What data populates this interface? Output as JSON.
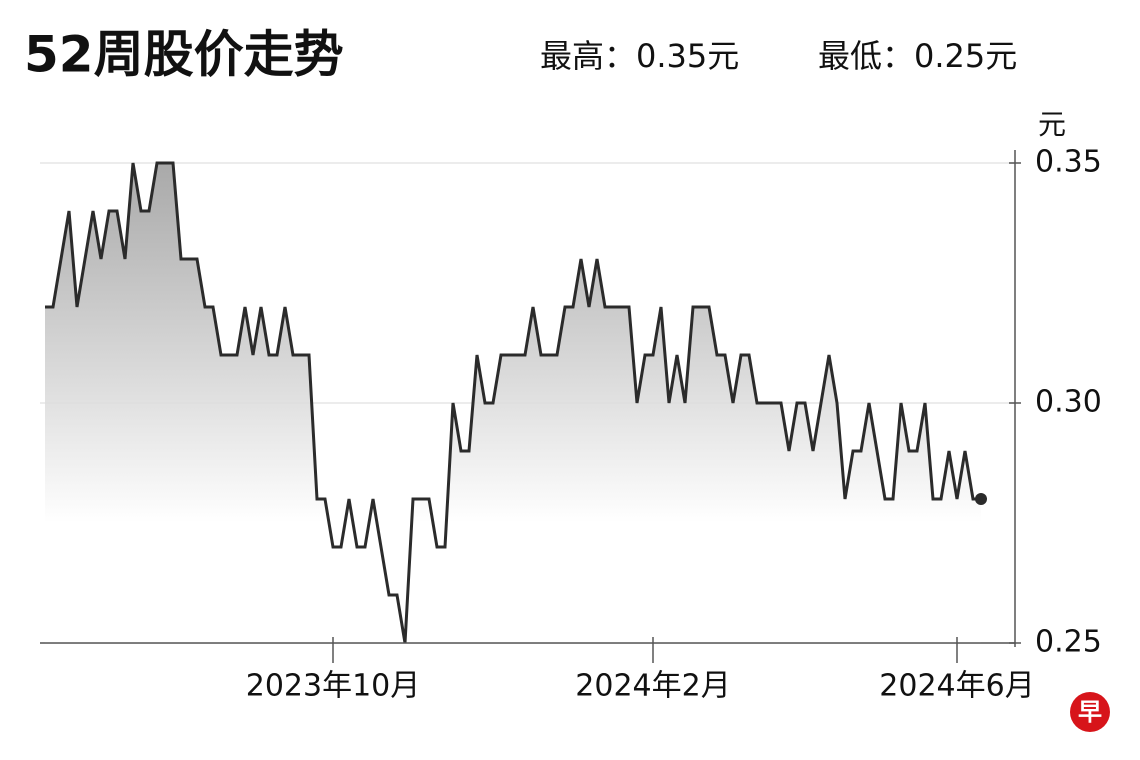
{
  "chart_data": {
    "type": "line",
    "title": "52周股价走势",
    "high_label": "最高：0.35元",
    "low_label": "最低：0.25元",
    "y_unit": "元",
    "logo": "早",
    "categories": [
      null,
      null,
      null,
      null,
      null,
      null,
      null,
      null,
      null,
      null,
      null,
      null,
      null,
      null,
      null,
      null,
      null,
      null,
      null,
      null,
      null,
      null,
      null,
      null,
      null,
      null,
      null,
      null,
      null,
      null,
      null,
      null,
      null,
      null,
      null,
      null,
      "2023年10月",
      null,
      null,
      null,
      null,
      null,
      null,
      null,
      null,
      null,
      null,
      null,
      null,
      null,
      null,
      null,
      null,
      null,
      null,
      null,
      null,
      null,
      null,
      null,
      null,
      null,
      null,
      null,
      null,
      null,
      null,
      null,
      null,
      null,
      null,
      null,
      null,
      null,
      null,
      null,
      "2024年2月",
      null,
      null,
      null,
      null,
      null,
      null,
      null,
      null,
      null,
      null,
      null,
      null,
      null,
      null,
      null,
      null,
      null,
      null,
      null,
      null,
      null,
      null,
      null,
      null,
      null,
      null,
      null,
      null,
      null,
      null,
      null,
      null,
      null,
      null,
      null,
      null,
      null,
      "2024年6月",
      null,
      null,
      null
    ],
    "series": [
      {
        "color": "#2b2b2b",
        "values": [
          0.32,
          0.32,
          0.33,
          0.34,
          0.32,
          0.33,
          0.34,
          0.33,
          0.34,
          0.34,
          0.33,
          0.35,
          0.34,
          0.34,
          0.35,
          0.35,
          0.35,
          0.33,
          0.33,
          0.33,
          0.32,
          0.32,
          0.31,
          0.31,
          0.31,
          0.32,
          0.31,
          0.32,
          0.31,
          0.31,
          0.32,
          0.31,
          0.31,
          0.31,
          0.28,
          0.28,
          0.27,
          0.27,
          0.28,
          0.27,
          0.27,
          0.28,
          0.27,
          0.26,
          0.26,
          0.25,
          0.28,
          0.28,
          0.28,
          0.27,
          0.27,
          0.3,
          0.29,
          0.29,
          0.31,
          0.3,
          0.3,
          0.31,
          0.31,
          0.31,
          0.31,
          0.32,
          0.31,
          0.31,
          0.31,
          0.32,
          0.32,
          0.33,
          0.32,
          0.33,
          0.32,
          0.32,
          0.32,
          0.32,
          0.3,
          0.31,
          0.31,
          0.32,
          0.3,
          0.31,
          0.3,
          0.32,
          0.32,
          0.32,
          0.31,
          0.31,
          0.3,
          0.31,
          0.31,
          0.3,
          0.3,
          0.3,
          0.3,
          0.29,
          0.3,
          0.3,
          0.29,
          0.3,
          0.31,
          0.3,
          0.28,
          0.29,
          0.29,
          0.3,
          0.29,
          0.28,
          0.28,
          0.3,
          0.29,
          0.29,
          0.3,
          0.28,
          0.28,
          0.29,
          0.28,
          0.29,
          0.28,
          0.28
        ]
      }
    ],
    "ylim": [
      0.25,
      0.35
    ],
    "yticks": [
      0.35,
      {
        "value": 0.3,
        "label": "0.30"
      },
      0.25
    ],
    "grid": true
  }
}
